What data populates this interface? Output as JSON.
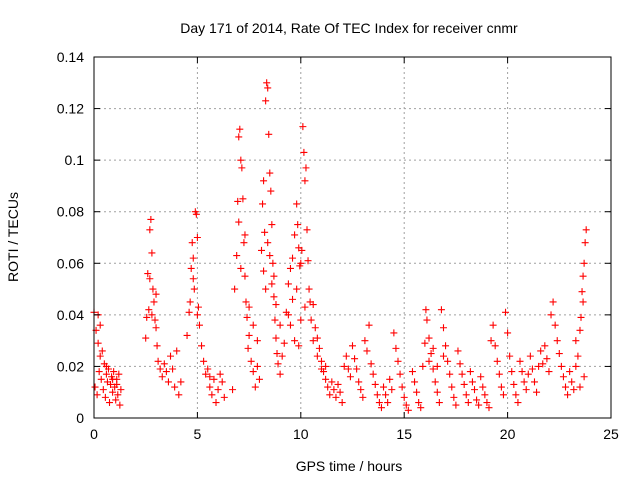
{
  "chart_data": {
    "type": "scatter",
    "title": "Day 171 of 2014, Rate Of TEC Index for receiver cnmr",
    "xlabel": "GPS time / hours",
    "ylabel": "ROTI / TECUs",
    "xlim": [
      0,
      25
    ],
    "ylim": [
      0,
      0.14
    ],
    "xticks": [
      0,
      5,
      10,
      15,
      20,
      25
    ],
    "xtick_labels": [
      "0",
      "5",
      "10",
      "15",
      "20",
      "25"
    ],
    "yticks": [
      0,
      0.02,
      0.04,
      0.06,
      0.08,
      0.1,
      0.12,
      0.14
    ],
    "ytick_labels": [
      "0",
      "0.02",
      "0.04",
      "0.06",
      "0.08",
      "0.1",
      "0.12",
      "0.14"
    ],
    "grid": true,
    "marker": "+",
    "color": "#ff0000",
    "series": [
      {
        "name": "ROTI",
        "points": [
          [
            0.0,
            0.041
          ],
          [
            0.05,
            0.012
          ],
          [
            0.1,
            0.034
          ],
          [
            0.15,
            0.009
          ],
          [
            0.2,
            0.029
          ],
          [
            0.25,
            0.018
          ],
          [
            0.3,
            0.036
          ],
          [
            0.35,
            0.015
          ],
          [
            0.4,
            0.026
          ],
          [
            0.45,
            0.011
          ],
          [
            0.5,
            0.021
          ],
          [
            0.55,
            0.008
          ],
          [
            0.6,
            0.017
          ],
          [
            0.65,
            0.014
          ],
          [
            0.7,
            0.019
          ],
          [
            0.75,
            0.006
          ],
          [
            0.8,
            0.013
          ],
          [
            0.85,
            0.016
          ],
          [
            0.9,
            0.01
          ],
          [
            0.95,
            0.018
          ],
          [
            1.0,
            0.012
          ],
          [
            1.05,
            0.007
          ],
          [
            1.1,
            0.015
          ],
          [
            1.15,
            0.009
          ],
          [
            1.2,
            0.017
          ],
          [
            1.25,
            0.005
          ],
          [
            0.2,
            0.04
          ],
          [
            0.3,
            0.024
          ],
          [
            0.6,
            0.02
          ],
          [
            0.9,
            0.015
          ],
          [
            1.1,
            0.013
          ],
          [
            1.3,
            0.011
          ],
          [
            2.5,
            0.031
          ],
          [
            2.55,
            0.039
          ],
          [
            2.6,
            0.056
          ],
          [
            2.65,
            0.042
          ],
          [
            2.7,
            0.073
          ],
          [
            2.75,
            0.077
          ],
          [
            2.8,
            0.064
          ],
          [
            2.85,
            0.05
          ],
          [
            2.9,
            0.045
          ],
          [
            2.95,
            0.038
          ],
          [
            3.0,
            0.035
          ],
          [
            3.05,
            0.028
          ],
          [
            3.1,
            0.022
          ],
          [
            3.2,
            0.019
          ],
          [
            3.3,
            0.016
          ],
          [
            3.4,
            0.021
          ],
          [
            3.5,
            0.018
          ],
          [
            3.6,
            0.014
          ],
          [
            3.7,
            0.024
          ],
          [
            3.8,
            0.019
          ],
          [
            3.9,
            0.012
          ],
          [
            4.0,
            0.026
          ],
          [
            4.1,
            0.009
          ],
          [
            4.2,
            0.014
          ],
          [
            2.7,
            0.054
          ],
          [
            2.8,
            0.04
          ],
          [
            3.0,
            0.048
          ],
          [
            4.5,
            0.032
          ],
          [
            4.6,
            0.041
          ],
          [
            4.65,
            0.045
          ],
          [
            4.7,
            0.058
          ],
          [
            4.75,
            0.068
          ],
          [
            4.8,
            0.062
          ],
          [
            4.85,
            0.05
          ],
          [
            4.9,
            0.08
          ],
          [
            4.95,
            0.079
          ],
          [
            5.0,
            0.07
          ],
          [
            5.05,
            0.043
          ],
          [
            5.1,
            0.036
          ],
          [
            5.2,
            0.028
          ],
          [
            5.3,
            0.022
          ],
          [
            5.4,
            0.017
          ],
          [
            5.5,
            0.019
          ],
          [
            5.6,
            0.012
          ],
          [
            5.7,
            0.009
          ],
          [
            5.8,
            0.015
          ],
          [
            5.9,
            0.006
          ],
          [
            6.0,
            0.011
          ],
          [
            6.1,
            0.017
          ],
          [
            6.2,
            0.014
          ],
          [
            6.3,
            0.008
          ],
          [
            4.8,
            0.054
          ],
          [
            5.0,
            0.04
          ],
          [
            5.6,
            0.016
          ],
          [
            6.7,
            0.011
          ],
          [
            6.8,
            0.05
          ],
          [
            6.9,
            0.063
          ],
          [
            6.95,
            0.084
          ],
          [
            7.0,
            0.109
          ],
          [
            7.05,
            0.112
          ],
          [
            7.1,
            0.1
          ],
          [
            7.15,
            0.097
          ],
          [
            7.2,
            0.085
          ],
          [
            7.25,
            0.068
          ],
          [
            7.3,
            0.055
          ],
          [
            7.35,
            0.045
          ],
          [
            7.4,
            0.039
          ],
          [
            7.45,
            0.027
          ],
          [
            7.5,
            0.032
          ],
          [
            7.6,
            0.022
          ],
          [
            7.7,
            0.018
          ],
          [
            7.8,
            0.012
          ],
          [
            7.9,
            0.02
          ],
          [
            8.0,
            0.015
          ],
          [
            7.0,
            0.076
          ],
          [
            7.1,
            0.058
          ],
          [
            7.3,
            0.071
          ],
          [
            7.5,
            0.043
          ],
          [
            7.7,
            0.036
          ],
          [
            7.9,
            0.03
          ],
          [
            8.1,
            0.065
          ],
          [
            8.15,
            0.083
          ],
          [
            8.2,
            0.092
          ],
          [
            8.25,
            0.072
          ],
          [
            8.3,
            0.123
          ],
          [
            8.35,
            0.13
          ],
          [
            8.4,
            0.128
          ],
          [
            8.45,
            0.11
          ],
          [
            8.5,
            0.095
          ],
          [
            8.55,
            0.088
          ],
          [
            8.6,
            0.075
          ],
          [
            8.65,
            0.06
          ],
          [
            8.7,
            0.047
          ],
          [
            8.75,
            0.038
          ],
          [
            8.8,
            0.031
          ],
          [
            8.85,
            0.025
          ],
          [
            8.9,
            0.021
          ],
          [
            9.0,
            0.017
          ],
          [
            9.1,
            0.024
          ],
          [
            9.2,
            0.029
          ],
          [
            8.2,
            0.057
          ],
          [
            8.4,
            0.068
          ],
          [
            8.6,
            0.052
          ],
          [
            8.8,
            0.044
          ],
          [
            9.0,
            0.036
          ],
          [
            8.3,
            0.05
          ],
          [
            8.5,
            0.063
          ],
          [
            8.7,
            0.055
          ],
          [
            9.3,
            0.041
          ],
          [
            9.4,
            0.052
          ],
          [
            9.5,
            0.058
          ],
          [
            9.6,
            0.062
          ],
          [
            9.7,
            0.071
          ],
          [
            9.8,
            0.083
          ],
          [
            9.85,
            0.075
          ],
          [
            9.9,
            0.066
          ],
          [
            9.95,
            0.059
          ],
          [
            10.0,
            0.06
          ],
          [
            10.05,
            0.065
          ],
          [
            10.1,
            0.113
          ],
          [
            10.15,
            0.103
          ],
          [
            10.2,
            0.092
          ],
          [
            10.25,
            0.097
          ],
          [
            10.3,
            0.073
          ],
          [
            10.35,
            0.061
          ],
          [
            10.4,
            0.05
          ],
          [
            10.45,
            0.045
          ],
          [
            9.4,
            0.04
          ],
          [
            9.6,
            0.046
          ],
          [
            9.8,
            0.05
          ],
          [
            10.0,
            0.038
          ],
          [
            10.2,
            0.043
          ],
          [
            9.5,
            0.036
          ],
          [
            9.7,
            0.03
          ],
          [
            9.9,
            0.028
          ],
          [
            10.5,
            0.038
          ],
          [
            10.6,
            0.044
          ],
          [
            10.7,
            0.035
          ],
          [
            10.8,
            0.031
          ],
          [
            10.9,
            0.027
          ],
          [
            11.0,
            0.022
          ],
          [
            11.1,
            0.018
          ],
          [
            11.2,
            0.015
          ],
          [
            11.3,
            0.012
          ],
          [
            11.4,
            0.009
          ],
          [
            11.5,
            0.014
          ],
          [
            11.6,
            0.011
          ],
          [
            11.7,
            0.008
          ],
          [
            11.8,
            0.013
          ],
          [
            11.9,
            0.01
          ],
          [
            12.0,
            0.006
          ],
          [
            12.1,
            0.02
          ],
          [
            12.2,
            0.024
          ],
          [
            12.3,
            0.019
          ],
          [
            12.4,
            0.016
          ],
          [
            10.6,
            0.03
          ],
          [
            10.8,
            0.024
          ],
          [
            11.0,
            0.019
          ],
          [
            11.2,
            0.02
          ],
          [
            12.5,
            0.028
          ],
          [
            12.6,
            0.023
          ],
          [
            12.7,
            0.019
          ],
          [
            12.8,
            0.014
          ],
          [
            12.9,
            0.011
          ],
          [
            13.0,
            0.008
          ],
          [
            13.1,
            0.03
          ],
          [
            13.2,
            0.026
          ],
          [
            13.3,
            0.036
          ],
          [
            13.4,
            0.021
          ],
          [
            13.5,
            0.017
          ],
          [
            13.6,
            0.013
          ],
          [
            13.7,
            0.009
          ],
          [
            13.8,
            0.006
          ],
          [
            13.9,
            0.004
          ],
          [
            14.0,
            0.012
          ],
          [
            14.1,
            0.009
          ],
          [
            14.2,
            0.006
          ],
          [
            14.3,
            0.015
          ],
          [
            14.4,
            0.011
          ],
          [
            14.5,
            0.033
          ],
          [
            14.6,
            0.027
          ],
          [
            14.7,
            0.022
          ],
          [
            14.8,
            0.017
          ],
          [
            14.9,
            0.012
          ],
          [
            15.0,
            0.008
          ],
          [
            15.1,
            0.005
          ],
          [
            15.2,
            0.003
          ],
          [
            15.4,
            0.018
          ],
          [
            15.5,
            0.014
          ],
          [
            15.6,
            0.01
          ],
          [
            15.7,
            0.006
          ],
          [
            15.8,
            0.004
          ],
          [
            15.9,
            0.02
          ],
          [
            16.0,
            0.029
          ],
          [
            16.05,
            0.042
          ],
          [
            16.1,
            0.038
          ],
          [
            16.2,
            0.031
          ],
          [
            16.3,
            0.025
          ],
          [
            16.4,
            0.019
          ],
          [
            16.5,
            0.014
          ],
          [
            16.6,
            0.01
          ],
          [
            16.7,
            0.006
          ],
          [
            16.8,
            0.042
          ],
          [
            16.9,
            0.035
          ],
          [
            17.0,
            0.028
          ],
          [
            17.1,
            0.022
          ],
          [
            17.2,
            0.017
          ],
          [
            17.3,
            0.012
          ],
          [
            17.4,
            0.008
          ],
          [
            17.5,
            0.005
          ],
          [
            16.2,
            0.022
          ],
          [
            16.4,
            0.027
          ],
          [
            16.6,
            0.02
          ],
          [
            16.9,
            0.024
          ],
          [
            17.6,
            0.026
          ],
          [
            17.7,
            0.021
          ],
          [
            17.8,
            0.017
          ],
          [
            17.9,
            0.013
          ],
          [
            18.0,
            0.009
          ],
          [
            18.1,
            0.006
          ],
          [
            18.2,
            0.018
          ],
          [
            18.3,
            0.014
          ],
          [
            18.4,
            0.011
          ],
          [
            18.5,
            0.007
          ],
          [
            18.6,
            0.005
          ],
          [
            18.7,
            0.016
          ],
          [
            18.8,
            0.012
          ],
          [
            18.9,
            0.009
          ],
          [
            19.0,
            0.006
          ],
          [
            19.1,
            0.004
          ],
          [
            19.2,
            0.03
          ],
          [
            19.3,
            0.036
          ],
          [
            19.4,
            0.028
          ],
          [
            19.5,
            0.022
          ],
          [
            19.6,
            0.017
          ],
          [
            19.7,
            0.012
          ],
          [
            19.8,
            0.009
          ],
          [
            19.9,
            0.041
          ],
          [
            20.0,
            0.033
          ],
          [
            20.1,
            0.024
          ],
          [
            20.2,
            0.018
          ],
          [
            20.3,
            0.013
          ],
          [
            20.4,
            0.009
          ],
          [
            20.5,
            0.006
          ],
          [
            20.6,
            0.022
          ],
          [
            20.7,
            0.018
          ],
          [
            20.8,
            0.014
          ],
          [
            20.9,
            0.011
          ],
          [
            21.0,
            0.017
          ],
          [
            21.1,
            0.024
          ],
          [
            21.2,
            0.019
          ],
          [
            21.3,
            0.014
          ],
          [
            21.4,
            0.01
          ],
          [
            21.5,
            0.02
          ],
          [
            21.6,
            0.026
          ],
          [
            21.7,
            0.021
          ],
          [
            21.8,
            0.028
          ],
          [
            21.9,
            0.023
          ],
          [
            22.0,
            0.018
          ],
          [
            22.1,
            0.04
          ],
          [
            22.2,
            0.045
          ],
          [
            22.3,
            0.036
          ],
          [
            22.4,
            0.03
          ],
          [
            22.5,
            0.025
          ],
          [
            22.6,
            0.02
          ],
          [
            22.7,
            0.016
          ],
          [
            22.8,
            0.012
          ],
          [
            22.9,
            0.009
          ],
          [
            23.0,
            0.018
          ],
          [
            23.1,
            0.014
          ],
          [
            23.2,
            0.011
          ],
          [
            23.3,
            0.02
          ],
          [
            23.4,
            0.024
          ],
          [
            23.5,
            0.034
          ],
          [
            23.55,
            0.039
          ],
          [
            23.6,
            0.049
          ],
          [
            23.65,
            0.055
          ],
          [
            23.7,
            0.06
          ],
          [
            23.75,
            0.068
          ],
          [
            23.8,
            0.073
          ],
          [
            23.65,
            0.045
          ],
          [
            23.7,
            0.016
          ],
          [
            23.5,
            0.012
          ],
          [
            23.3,
            0.03
          ]
        ]
      }
    ]
  }
}
